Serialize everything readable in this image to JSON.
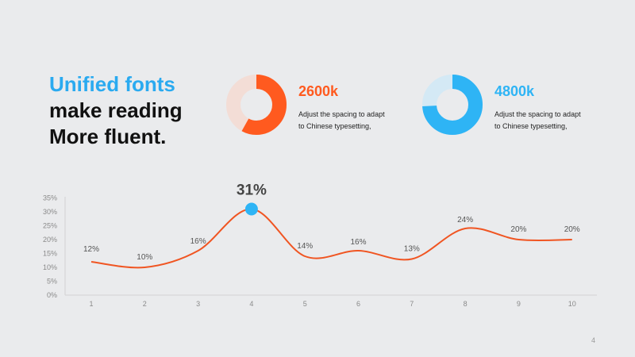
{
  "headline": {
    "line1": "Unified fonts",
    "line2": "make reading",
    "line3": "More fluent."
  },
  "stats": [
    {
      "value": "2600k",
      "description_line1": "Adjust the spacing to adapt",
      "description_line2": "to Chinese typesetting,",
      "fraction": 0.58,
      "color": "#ff5a1f",
      "track_color": "#f3ddd6"
    },
    {
      "value": "4800k",
      "description_line1": "Adjust the spacing to adapt",
      "description_line2": "to Chinese typesetting,",
      "fraction": 0.74,
      "color": "#2eb4f5",
      "track_color": "#d4e9f5"
    }
  ],
  "colors": {
    "accent_blue": "#2aaaf0",
    "line_orange": "#f05522",
    "highlight_point": "#2eb4f5"
  },
  "chart_data": {
    "type": "line",
    "x": [
      1,
      2,
      3,
      4,
      5,
      6,
      7,
      8,
      9,
      10
    ],
    "values": [
      12,
      10,
      16,
      31,
      14,
      16,
      13,
      24,
      20,
      20
    ],
    "data_labels": [
      "12%",
      "10%",
      "16%",
      "31%",
      "14%",
      "16%",
      "13%",
      "24%",
      "20%",
      "20%"
    ],
    "x_tick_labels": [
      "1",
      "2",
      "3",
      "4",
      "5",
      "6",
      "7",
      "8",
      "9",
      "10"
    ],
    "y_tick_labels": [
      "0%",
      "5%",
      "10%",
      "15%",
      "20%",
      "25%",
      "30%",
      "35%"
    ],
    "ylim": [
      0,
      35
    ],
    "highlight_index": 3,
    "smooth": true,
    "grid": false
  },
  "page_number": "4"
}
